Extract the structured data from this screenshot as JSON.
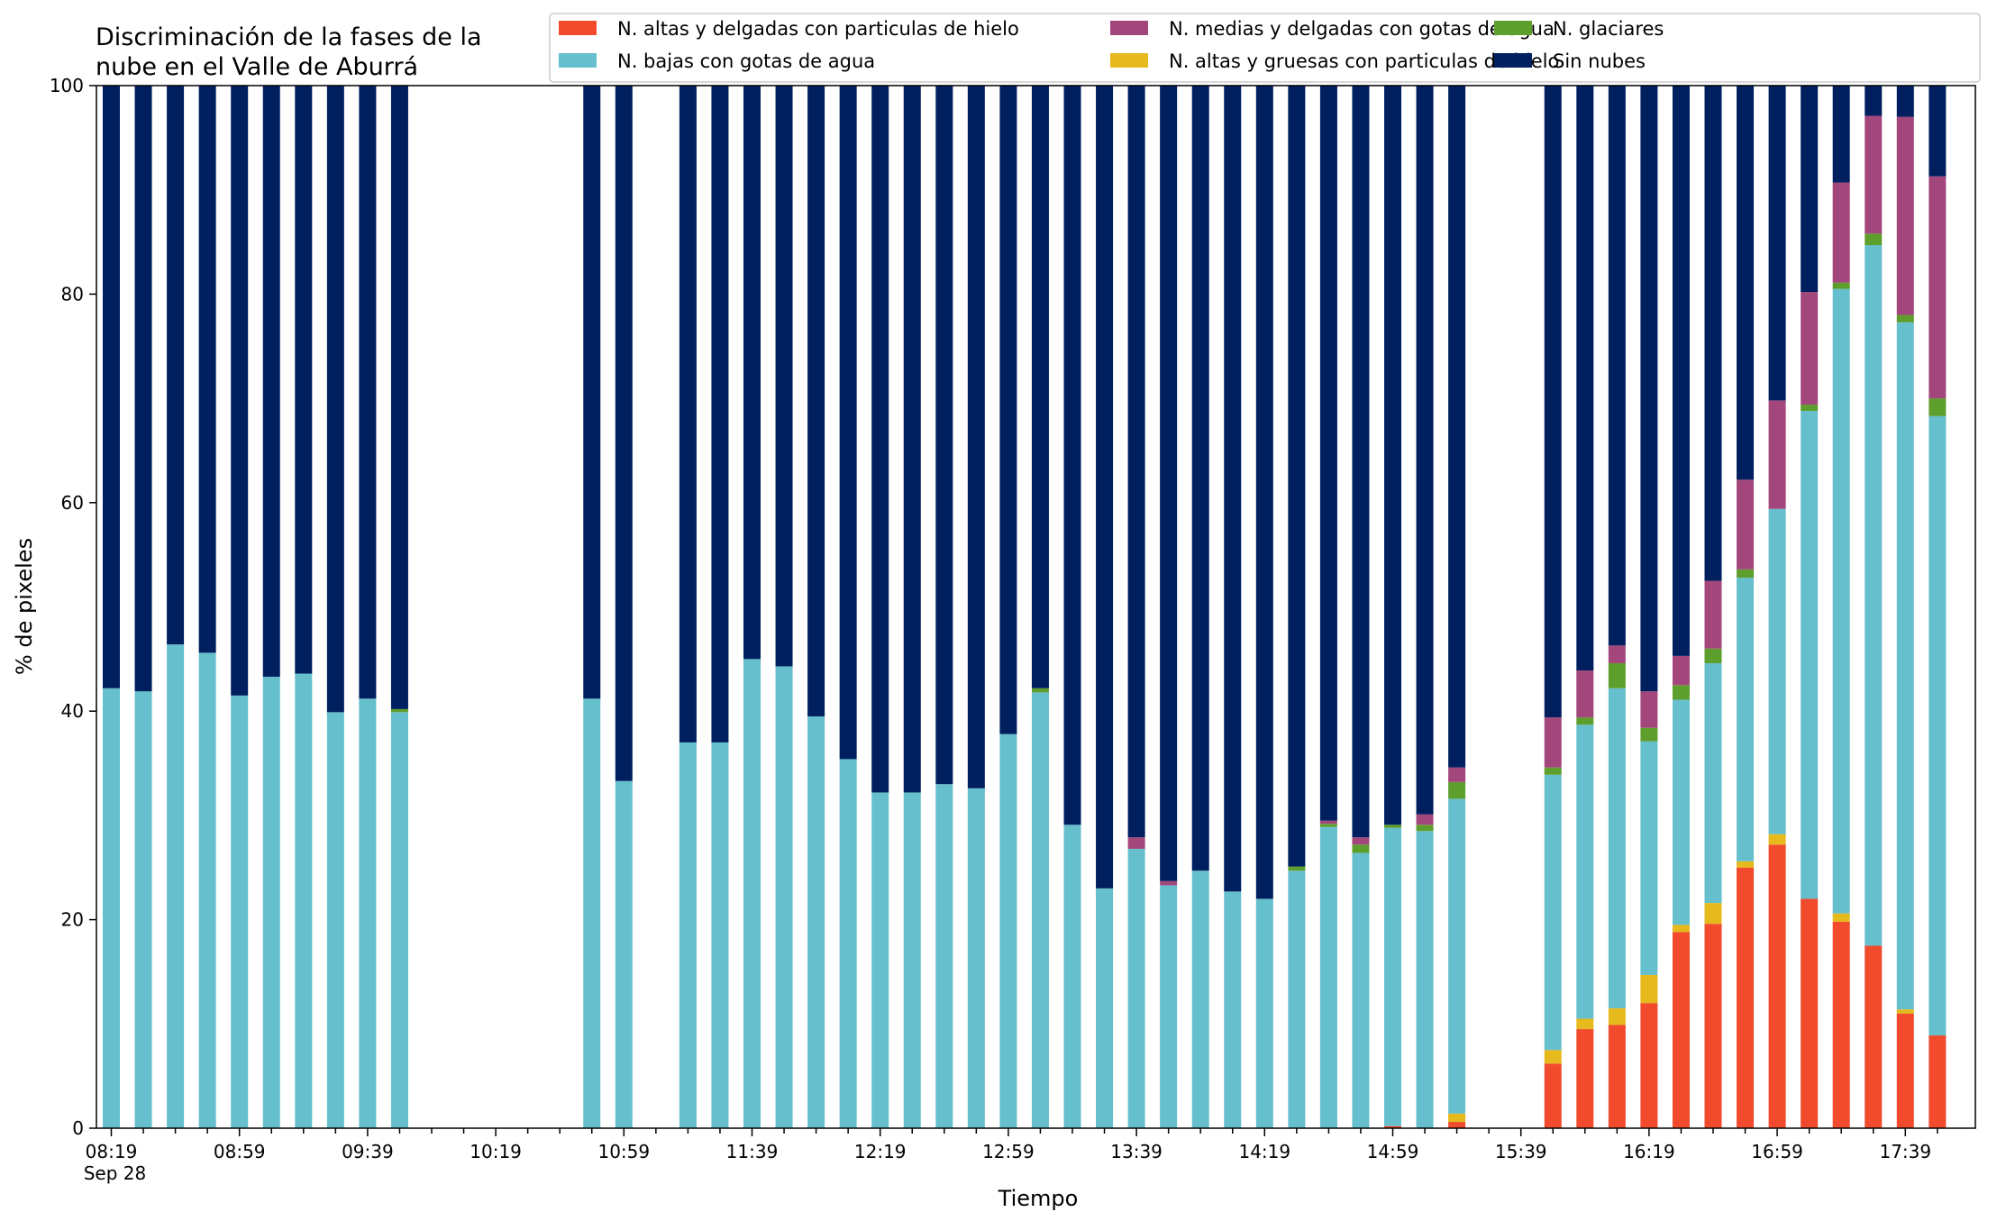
{
  "chart_data": {
    "type": "bar",
    "stacked": true,
    "title": [
      "Discriminación de la fases de la",
      "nube en el Valle de Aburrá"
    ],
    "xlabel": "Tiempo",
    "ylabel": "% de pixeles",
    "ylim": [
      0,
      100
    ],
    "y_ticks": [
      "0",
      "20",
      "40",
      "60",
      "80",
      "100"
    ],
    "x_tick_labels": [
      {
        "label": "08:19",
        "sublabel": "Sep 28",
        "slot": 0
      },
      {
        "label": "08:59",
        "slot": 4
      },
      {
        "label": "09:39",
        "slot": 8
      },
      {
        "label": "10:19",
        "slot": 12
      },
      {
        "label": "10:59",
        "slot": 16
      },
      {
        "label": "11:39",
        "slot": 20
      },
      {
        "label": "12:19",
        "slot": 24
      },
      {
        "label": "12:59",
        "slot": 28
      },
      {
        "label": "13:39",
        "slot": 32
      },
      {
        "label": "14:19",
        "slot": 36
      },
      {
        "label": "14:59",
        "slot": 40
      },
      {
        "label": "15:39",
        "slot": 44
      },
      {
        "label": "16:19",
        "slot": 48
      },
      {
        "label": "16:59",
        "slot": 52
      },
      {
        "label": "17:39",
        "slot": 56
      }
    ],
    "x_interval_minutes": 10,
    "x_slot_count": 58,
    "legend_position": "top-right",
    "grid": false,
    "series": [
      {
        "name": "N. altas y delgadas con particulas de hielo",
        "color": "#f14a2c"
      },
      {
        "name": "N. altas y gruesas con particulas de hielo",
        "color": "#e6b91c"
      },
      {
        "name": "N. bajas con gotas de agua",
        "color": "#66bfcc"
      },
      {
        "name": "N. glaciares",
        "color": "#5e9e2d"
      },
      {
        "name": "N. medias y delgadas con gotas de agua",
        "color": "#a3467c"
      },
      {
        "name": "Sin nubes",
        "color": "#001f5f"
      }
    ],
    "legend_order": [
      0,
      2,
      4,
      1,
      3,
      5
    ],
    "bars": [
      {
        "slot": 0,
        "values": [
          0,
          0,
          42.2,
          0,
          0,
          57.8
        ]
      },
      {
        "slot": 1,
        "values": [
          0,
          0,
          41.9,
          0,
          0,
          58.1
        ]
      },
      {
        "slot": 2,
        "values": [
          0,
          0,
          46.4,
          0,
          0,
          53.6
        ]
      },
      {
        "slot": 3,
        "values": [
          0,
          0,
          45.6,
          0,
          0,
          54.4
        ]
      },
      {
        "slot": 4,
        "values": [
          0,
          0,
          41.5,
          0,
          0,
          58.5
        ]
      },
      {
        "slot": 5,
        "values": [
          0,
          0,
          43.3,
          0,
          0,
          56.7
        ]
      },
      {
        "slot": 6,
        "values": [
          0,
          0,
          43.6,
          0,
          0,
          56.4
        ]
      },
      {
        "slot": 7,
        "values": [
          0,
          0,
          39.9,
          0,
          0,
          60.1
        ]
      },
      {
        "slot": 8,
        "values": [
          0,
          0,
          41.2,
          0,
          0,
          58.8
        ]
      },
      {
        "slot": 9,
        "values": [
          0,
          0,
          39.9,
          0.3,
          0,
          59.8
        ]
      },
      {
        "slot": 15,
        "values": [
          0,
          0,
          41.2,
          0,
          0,
          58.8
        ]
      },
      {
        "slot": 16,
        "values": [
          0,
          0,
          33.3,
          0,
          0,
          66.7
        ]
      },
      {
        "slot": 18,
        "values": [
          0,
          0,
          37.0,
          0,
          0,
          63.0
        ]
      },
      {
        "slot": 19,
        "values": [
          0,
          0,
          37.0,
          0,
          0,
          63.0
        ]
      },
      {
        "slot": 20,
        "values": [
          0,
          0,
          45.0,
          0,
          0,
          55.0
        ]
      },
      {
        "slot": 21,
        "values": [
          0,
          0,
          44.3,
          0,
          0,
          55.7
        ]
      },
      {
        "slot": 22,
        "values": [
          0,
          0,
          39.5,
          0,
          0,
          60.5
        ]
      },
      {
        "slot": 23,
        "values": [
          0,
          0,
          35.4,
          0,
          0,
          64.6
        ]
      },
      {
        "slot": 24,
        "values": [
          0,
          0,
          32.2,
          0,
          0,
          67.8
        ]
      },
      {
        "slot": 25,
        "values": [
          0,
          0,
          32.2,
          0,
          0,
          67.8
        ]
      },
      {
        "slot": 26,
        "values": [
          0,
          0,
          33.0,
          0,
          0,
          67.0
        ]
      },
      {
        "slot": 27,
        "values": [
          0,
          0,
          32.6,
          0,
          0,
          67.4
        ]
      },
      {
        "slot": 28,
        "values": [
          0,
          0,
          37.8,
          0,
          0,
          62.2
        ]
      },
      {
        "slot": 29,
        "values": [
          0,
          0,
          41.8,
          0.4,
          0,
          57.8
        ]
      },
      {
        "slot": 30,
        "values": [
          0,
          0,
          29.1,
          0,
          0,
          70.9
        ]
      },
      {
        "slot": 31,
        "values": [
          0,
          0,
          23.0,
          0,
          0,
          77.0
        ]
      },
      {
        "slot": 32,
        "values": [
          0,
          0,
          26.8,
          0,
          1.1,
          72.1
        ]
      },
      {
        "slot": 33,
        "values": [
          0,
          0,
          23.3,
          0,
          0.4,
          76.3
        ]
      },
      {
        "slot": 34,
        "values": [
          0,
          0,
          24.7,
          0,
          0,
          75.3
        ]
      },
      {
        "slot": 35,
        "values": [
          0,
          0,
          22.7,
          0,
          0,
          77.3
        ]
      },
      {
        "slot": 36,
        "values": [
          0,
          0,
          22.0,
          0,
          0,
          78.0
        ]
      },
      {
        "slot": 37,
        "values": [
          0,
          0,
          24.7,
          0.4,
          0,
          74.9
        ]
      },
      {
        "slot": 38,
        "values": [
          0,
          0,
          28.9,
          0.3,
          0.3,
          70.5
        ]
      },
      {
        "slot": 39,
        "values": [
          0,
          0,
          26.4,
          0.8,
          0.7,
          72.1
        ]
      },
      {
        "slot": 40,
        "values": [
          0.2,
          0,
          28.6,
          0.3,
          0,
          70.9
        ]
      },
      {
        "slot": 41,
        "values": [
          0,
          0,
          28.5,
          0.6,
          1.0,
          69.9
        ]
      },
      {
        "slot": 42,
        "values": [
          0.6,
          0.8,
          30.2,
          1.6,
          1.4,
          65.4
        ]
      },
      {
        "slot": 45,
        "values": [
          6.2,
          1.3,
          26.4,
          0.7,
          4.8,
          60.6
        ]
      },
      {
        "slot": 46,
        "values": [
          9.5,
          1.0,
          28.2,
          0.7,
          4.5,
          56.1
        ]
      },
      {
        "slot": 47,
        "values": [
          9.9,
          1.6,
          30.7,
          2.4,
          1.7,
          53.7
        ]
      },
      {
        "slot": 48,
        "values": [
          12.0,
          2.7,
          22.4,
          1.3,
          3.5,
          58.1
        ]
      },
      {
        "slot": 49,
        "values": [
          18.8,
          0.7,
          21.6,
          1.4,
          2.8,
          54.7
        ]
      },
      {
        "slot": 50,
        "values": [
          19.6,
          2.0,
          23.0,
          1.4,
          6.5,
          47.5
        ]
      },
      {
        "slot": 51,
        "values": [
          25.0,
          0.6,
          27.2,
          0.8,
          8.6,
          37.8
        ]
      },
      {
        "slot": 52,
        "values": [
          27.2,
          1.0,
          31.2,
          0,
          10.4,
          30.2
        ]
      },
      {
        "slot": 53,
        "values": [
          22.0,
          0,
          46.8,
          0.6,
          10.8,
          19.8
        ]
      },
      {
        "slot": 54,
        "values": [
          19.8,
          0.8,
          59.9,
          0.6,
          9.6,
          9.3
        ]
      },
      {
        "slot": 55,
        "values": [
          17.5,
          0,
          67.2,
          1.1,
          11.3,
          2.9
        ]
      },
      {
        "slot": 56,
        "values": [
          11.0,
          0.4,
          65.9,
          0.7,
          19.0,
          3.0
        ]
      },
      {
        "slot": 57,
        "values": [
          8.9,
          0,
          59.4,
          1.7,
          21.3,
          8.7
        ]
      }
    ]
  }
}
